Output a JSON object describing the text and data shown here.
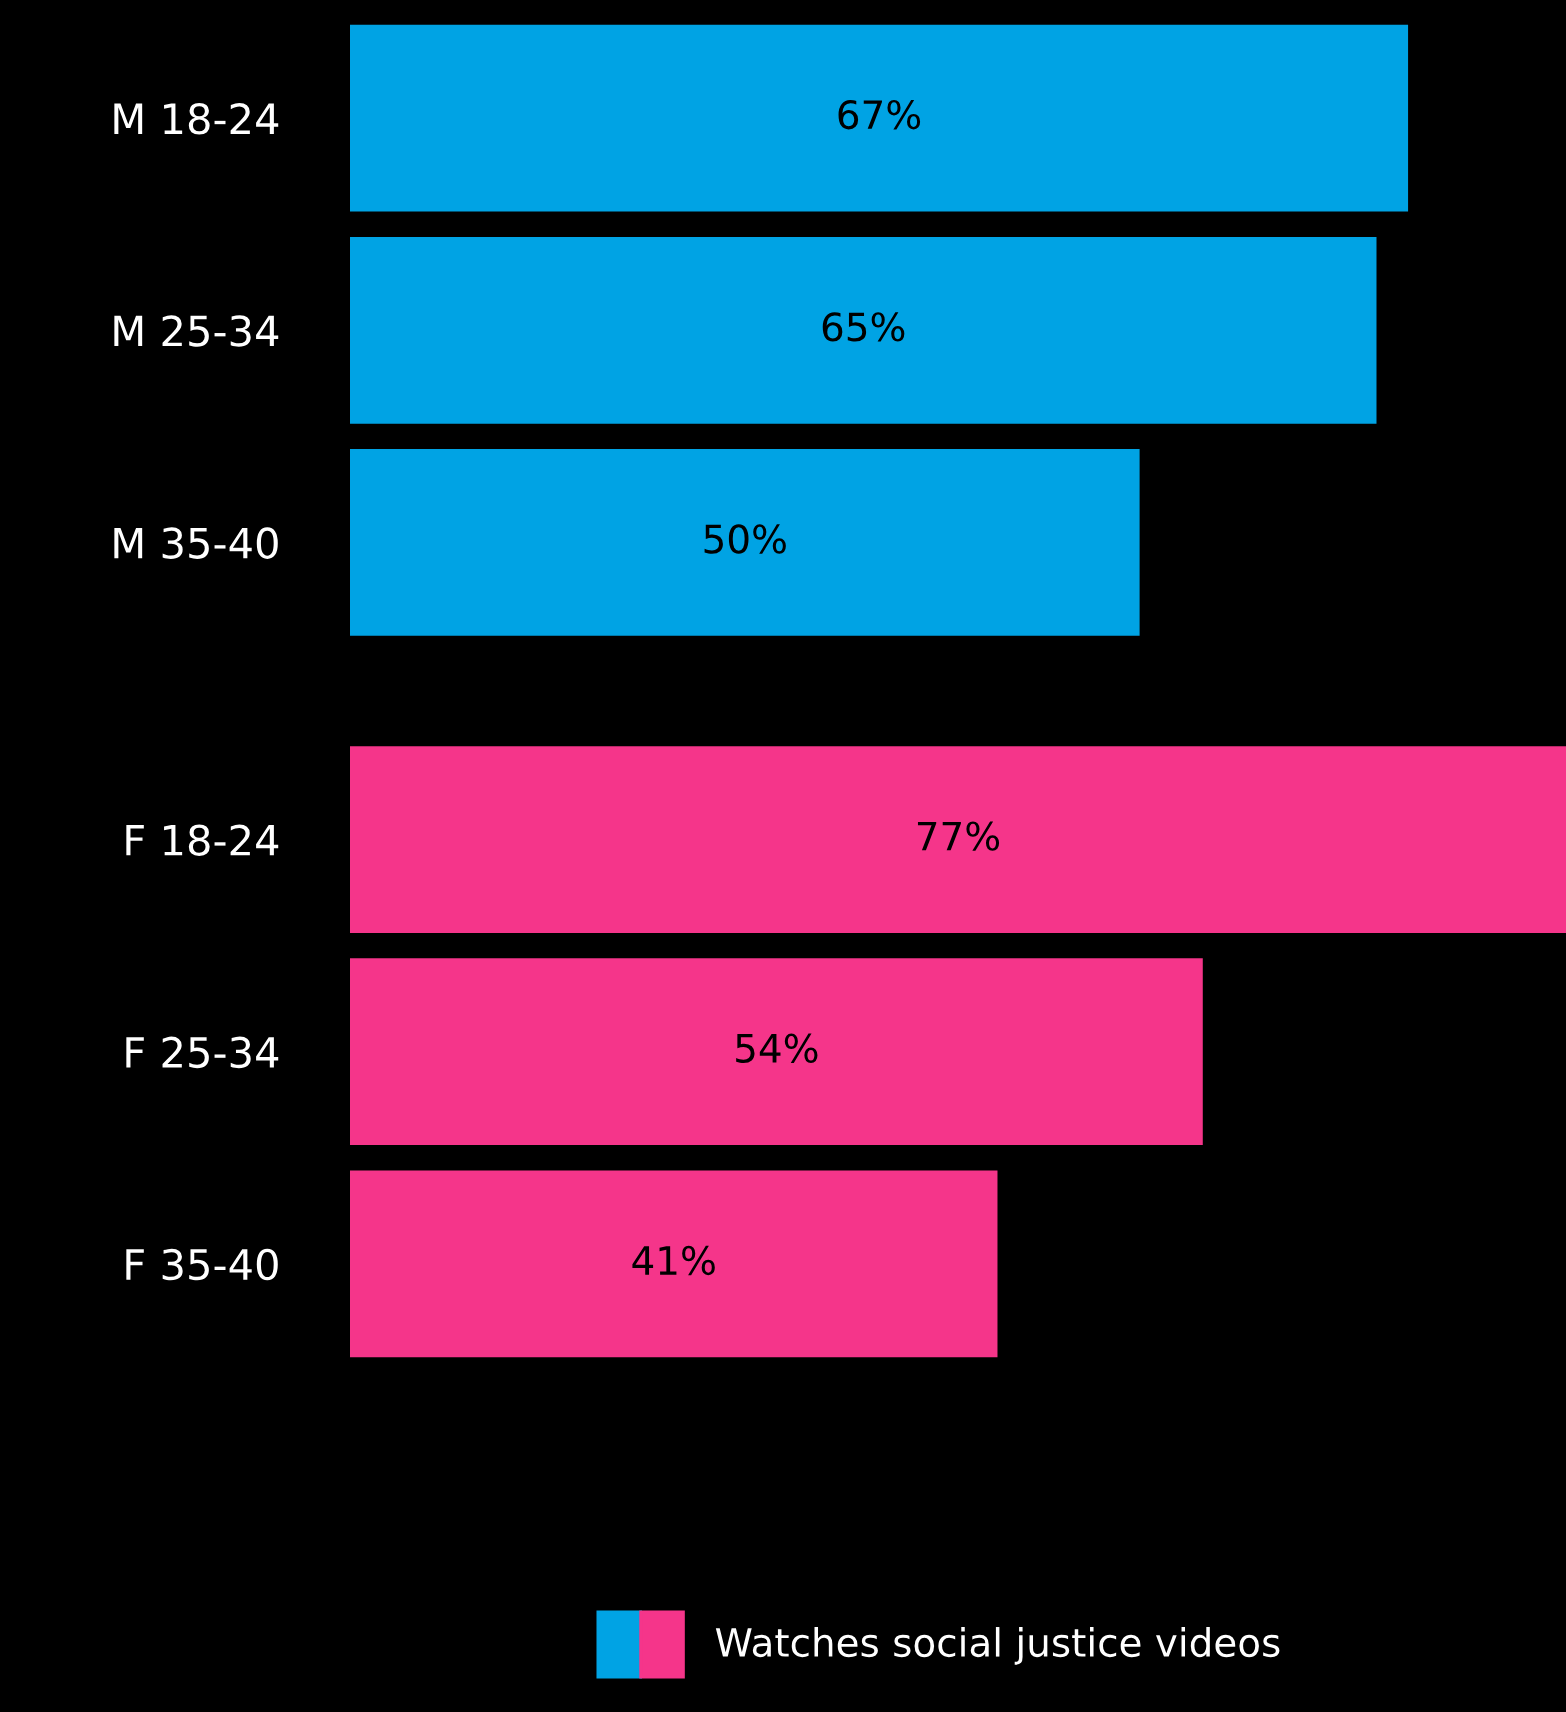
{
  "chart_data": {
    "type": "bar",
    "orientation": "horizontal",
    "categories": [
      "M 18-24",
      "M 25-34",
      "M 35-40",
      "F 18-24",
      "F 25-34",
      "F 35-40"
    ],
    "series": [
      {
        "name": "Watches social justice videos",
        "colors": [
          "#00a3e4",
          "#00a3e4",
          "#00a3e4",
          "#f5358a",
          "#f5358a",
          "#f5358a"
        ],
        "values": [
          67,
          65,
          50,
          77,
          54,
          41
        ],
        "value_labels": [
          "67%",
          "65%",
          "50%",
          "77%",
          "54%",
          "41%"
        ]
      }
    ],
    "grid": false,
    "legend": "bottom"
  }
}
